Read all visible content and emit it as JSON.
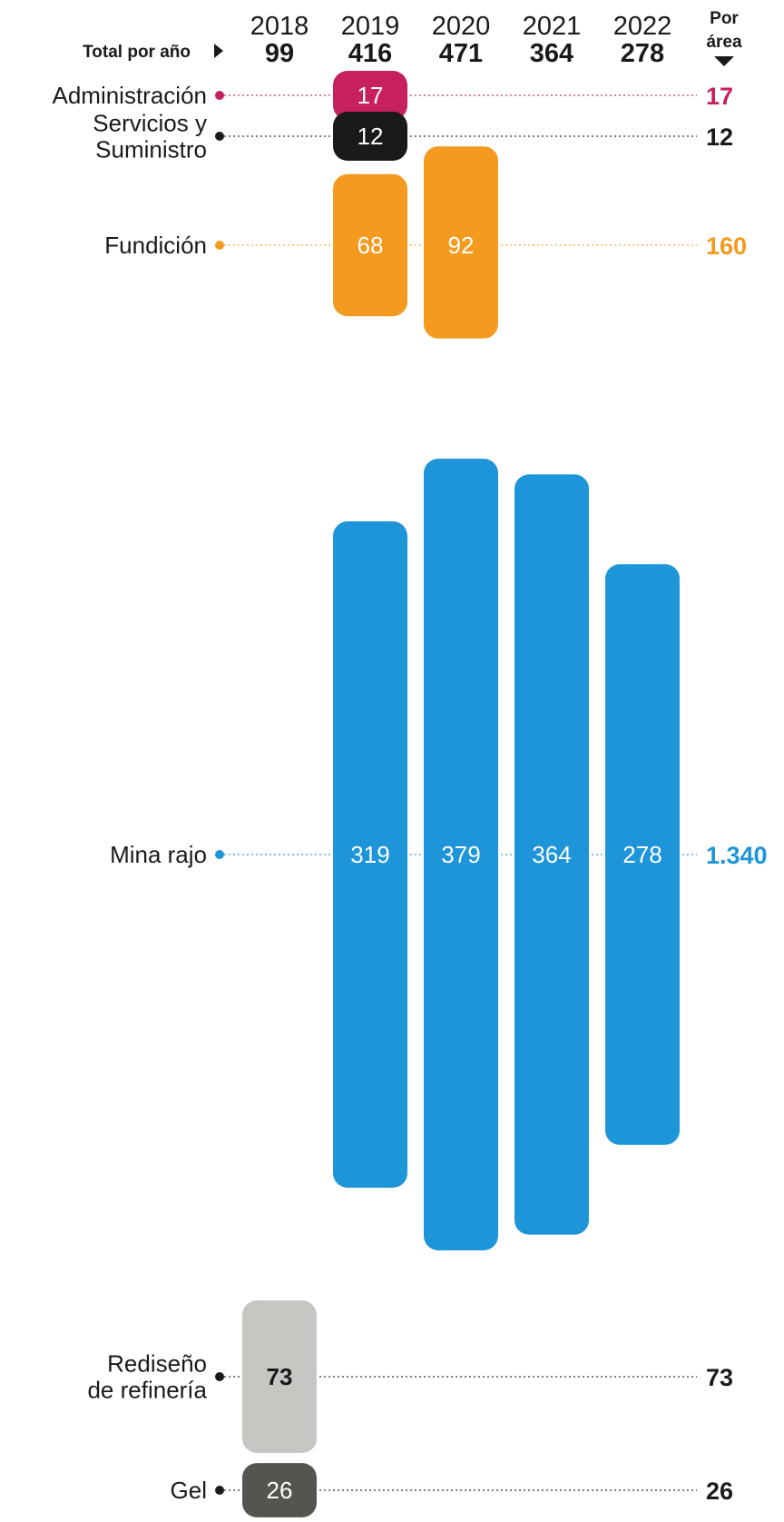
{
  "header": {
    "total_label": "Total por año",
    "area_label_line1": "Por",
    "area_label_line2": "área",
    "years": [
      "2018",
      "2019",
      "2020",
      "2021",
      "2022"
    ],
    "totals": [
      "99",
      "416",
      "471",
      "364",
      "278"
    ]
  },
  "chart_data": {
    "type": "bar",
    "x": [
      "2018",
      "2019",
      "2020",
      "2021",
      "2022"
    ],
    "series": [
      {
        "name": "Administración",
        "label_lines": [
          "Administración"
        ],
        "color": "#c7205f",
        "text_color": "#ffffff",
        "values": [
          0,
          17,
          0,
          0,
          0
        ],
        "value_labels": [
          "",
          "17",
          "",
          "",
          ""
        ],
        "area_total": "17",
        "total_color": "#c7205f"
      },
      {
        "name": "Servicios y Suministro",
        "label_lines": [
          "Servicios y",
          "Suministro"
        ],
        "color": "#1a1a1a",
        "text_color": "#ffffff",
        "values": [
          0,
          12,
          0,
          0,
          0
        ],
        "value_labels": [
          "",
          "12",
          "",
          "",
          ""
        ],
        "area_total": "12",
        "total_color": "#1a1a1a"
      },
      {
        "name": "Fundición",
        "label_lines": [
          "Fundición"
        ],
        "color": "#f39a1f",
        "text_color": "#ffffff",
        "values": [
          0,
          68,
          92,
          0,
          0
        ],
        "value_labels": [
          "",
          "68",
          "92",
          "",
          ""
        ],
        "area_total": "160",
        "total_color": "#f39a1f"
      },
      {
        "name": "Mina rajo",
        "label_lines": [
          "Mina rajo"
        ],
        "color": "#1d95d8",
        "text_color": "#ffffff",
        "values": [
          0,
          319,
          379,
          364,
          278
        ],
        "value_labels": [
          "",
          "319",
          "379",
          "364",
          "278"
        ],
        "area_total": "1.340",
        "total_color": "#1d95d8"
      },
      {
        "name": "Rediseño de refinería",
        "label_lines": [
          "Rediseño",
          "de refinería"
        ],
        "color": "#c6c6c2",
        "text_color": "#1a1a1a",
        "values": [
          73,
          0,
          0,
          0,
          0
        ],
        "value_labels": [
          "73",
          "",
          "",
          "",
          ""
        ],
        "area_total": "73",
        "total_color": "#1a1a1a"
      },
      {
        "name": "Gel",
        "label_lines": [
          "Gel"
        ],
        "color": "#55554f",
        "text_color": "#ffffff",
        "values": [
          26,
          0,
          0,
          0,
          0
        ],
        "value_labels": [
          "26",
          "",
          "",
          "",
          ""
        ],
        "area_total": "26",
        "total_color": "#1a1a1a"
      }
    ]
  }
}
